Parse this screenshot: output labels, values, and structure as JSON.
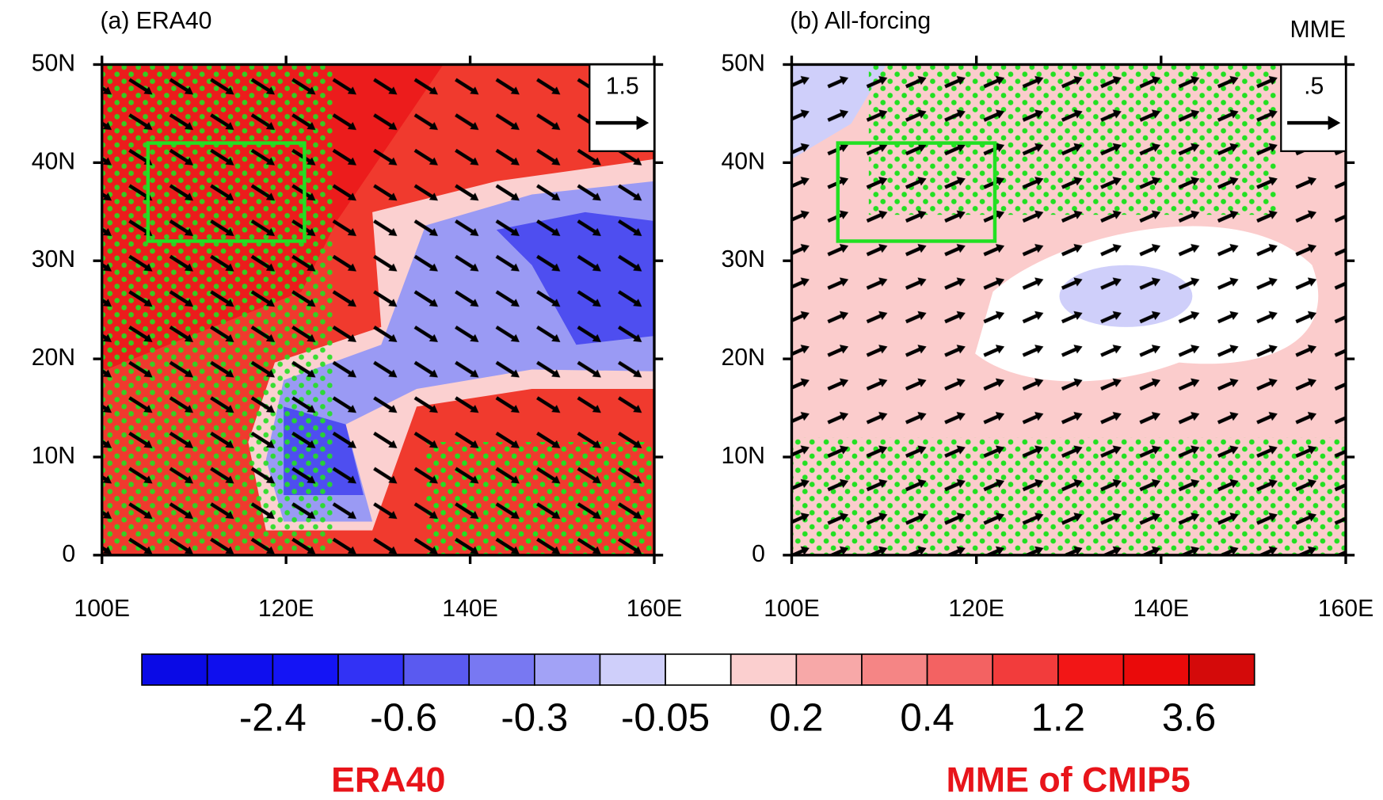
{
  "map": {
    "xlim": [
      100,
      160
    ],
    "ylim": [
      0,
      50
    ],
    "xticks": [
      {
        "value": 100,
        "label": "100E"
      },
      {
        "value": 120,
        "label": "120E"
      },
      {
        "value": 140,
        "label": "140E"
      },
      {
        "value": 160,
        "label": "160E"
      }
    ],
    "yticks": [
      0,
      {
        "value": 10,
        "label": "10N"
      },
      {
        "value": 20,
        "label": "20N"
      },
      {
        "value": 30,
        "label": "30N"
      },
      {
        "value": 40,
        "label": "40N"
      },
      {
        "value": 50,
        "label": "50N"
      }
    ],
    "box_region": {
      "lon": [
        105,
        122
      ],
      "lat": [
        32,
        42
      ]
    },
    "box_color": "#22e022"
  },
  "panels": [
    {
      "title": "(a) ERA40",
      "ref_vector": 1.5
    },
    {
      "title": "(b) All-forcing",
      "corner_label": "MME",
      "ref_vector": {
        "value": 0.5,
        "label": ".5"
      }
    }
  ],
  "colorbar": {
    "levels": [
      null,
      -2.4,
      null,
      -0.6,
      null,
      -0.3,
      null,
      -0.05,
      null,
      0.2,
      null,
      0.4,
      null,
      1.2,
      null,
      3.6
    ],
    "colors": [
      "#0a0ae6",
      "#0f0fee",
      "#1414f5",
      "#3232f5",
      "#5a5af0",
      "#7878f2",
      "#a2a2f6",
      "#cfcffa",
      "#ffffff",
      "#fbcfcf",
      "#f7a8a8",
      "#f58585",
      "#f36262",
      "#f23c3c",
      "#f21616",
      "#ea0a0a",
      "#d40a0a"
    ]
  },
  "labels": [
    "ERA40",
    "MME of CMIP5"
  ]
}
